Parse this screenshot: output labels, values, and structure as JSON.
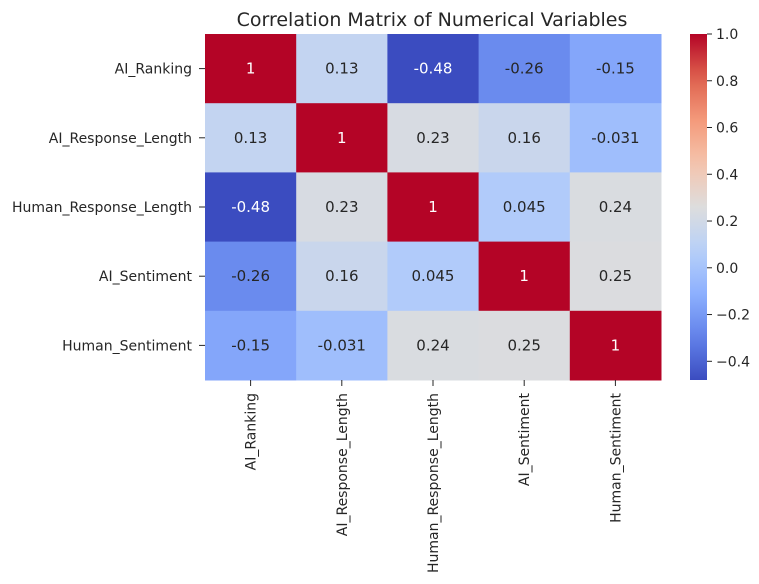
{
  "chart_data": {
    "type": "heatmap",
    "title": "Correlation Matrix of Numerical Variables",
    "rows": [
      "AI_Ranking",
      "AI_Response_Length",
      "Human_Response_Length",
      "AI_Sentiment",
      "Human_Sentiment"
    ],
    "columns": [
      "AI_Ranking",
      "AI_Response_Length",
      "Human_Response_Length",
      "AI_Sentiment",
      "Human_Sentiment"
    ],
    "values": [
      [
        1,
        0.13,
        -0.48,
        -0.26,
        -0.15
      ],
      [
        0.13,
        1,
        0.23,
        0.16,
        -0.031
      ],
      [
        -0.48,
        0.23,
        1,
        0.045,
        0.24
      ],
      [
        -0.26,
        0.16,
        0.045,
        1,
        0.25
      ],
      [
        -0.15,
        -0.031,
        0.24,
        0.25,
        1
      ]
    ],
    "cell_labels": [
      [
        "1",
        "0.13",
        "-0.48",
        "-0.26",
        "-0.15"
      ],
      [
        "0.13",
        "1",
        "0.23",
        "0.16",
        "-0.031"
      ],
      [
        "-0.48",
        "0.23",
        "1",
        "0.045",
        "0.24"
      ],
      [
        "-0.26",
        "0.16",
        "0.045",
        "1",
        "0.25"
      ],
      [
        "-0.15",
        "-0.031",
        "0.24",
        "0.25",
        "1"
      ]
    ],
    "colormap": "coolwarm",
    "color_range": [
      -0.48,
      1
    ],
    "colorbar_ticks": [
      1.0,
      0.8,
      0.6,
      0.4,
      0.2,
      0.0,
      -0.2,
      -0.4
    ],
    "colorbar_tick_labels": [
      "1.0",
      "0.8",
      "0.6",
      "0.4",
      "0.2",
      "0.0",
      "−0.2",
      "−0.4"
    ],
    "colorbar_position": "right"
  }
}
